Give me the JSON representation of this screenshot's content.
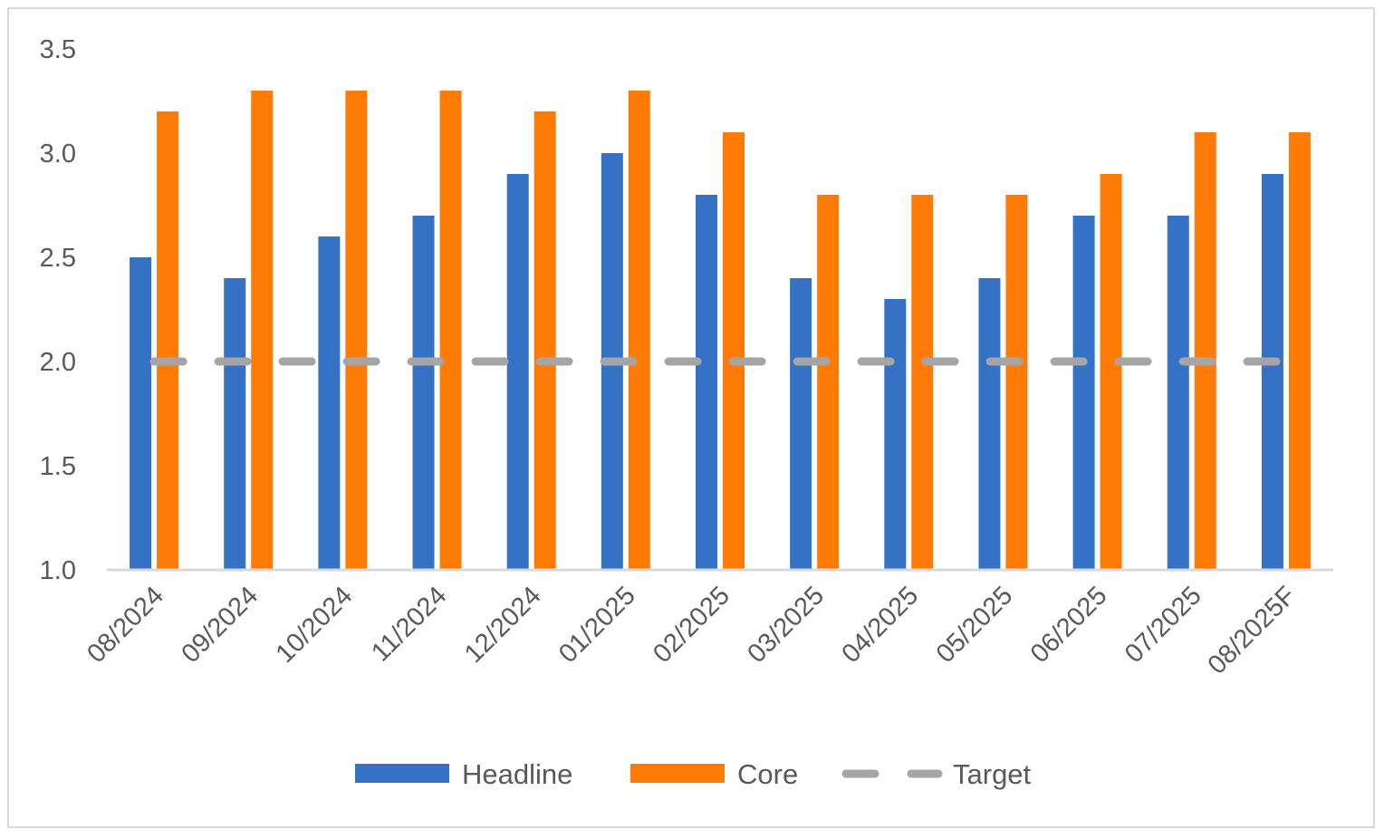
{
  "chart_data": {
    "type": "bar",
    "title": "",
    "xlabel": "",
    "ylabel": "",
    "ylim": [
      1.0,
      3.5
    ],
    "yticks": [
      "1.0",
      "1.5",
      "2.0",
      "2.5",
      "3.0",
      "3.5"
    ],
    "grid": false,
    "legend_position": "bottom",
    "categories": [
      "08/2024",
      "09/2024",
      "10/2024",
      "11/2024",
      "12/2024",
      "01/2025",
      "02/2025",
      "03/2025",
      "04/2025",
      "05/2025",
      "06/2025",
      "07/2025",
      "08/2025F"
    ],
    "series": [
      {
        "name": "Headline",
        "type": "bar",
        "color": "#3572c6",
        "values": [
          2.5,
          2.4,
          2.6,
          2.7,
          2.9,
          3.0,
          2.8,
          2.4,
          2.3,
          2.4,
          2.7,
          2.7,
          2.9
        ]
      },
      {
        "name": "Core",
        "type": "bar",
        "color": "#ff7b06",
        "values": [
          3.2,
          3.3,
          3.3,
          3.3,
          3.2,
          3.3,
          3.1,
          2.8,
          2.8,
          2.8,
          2.9,
          3.1,
          3.1
        ]
      },
      {
        "name": "Target",
        "type": "line",
        "style": "dashed",
        "color": "#a5a5a5",
        "values": [
          2.0,
          2.0,
          2.0,
          2.0,
          2.0,
          2.0,
          2.0,
          2.0,
          2.0,
          2.0,
          2.0,
          2.0,
          2.0
        ]
      }
    ]
  }
}
